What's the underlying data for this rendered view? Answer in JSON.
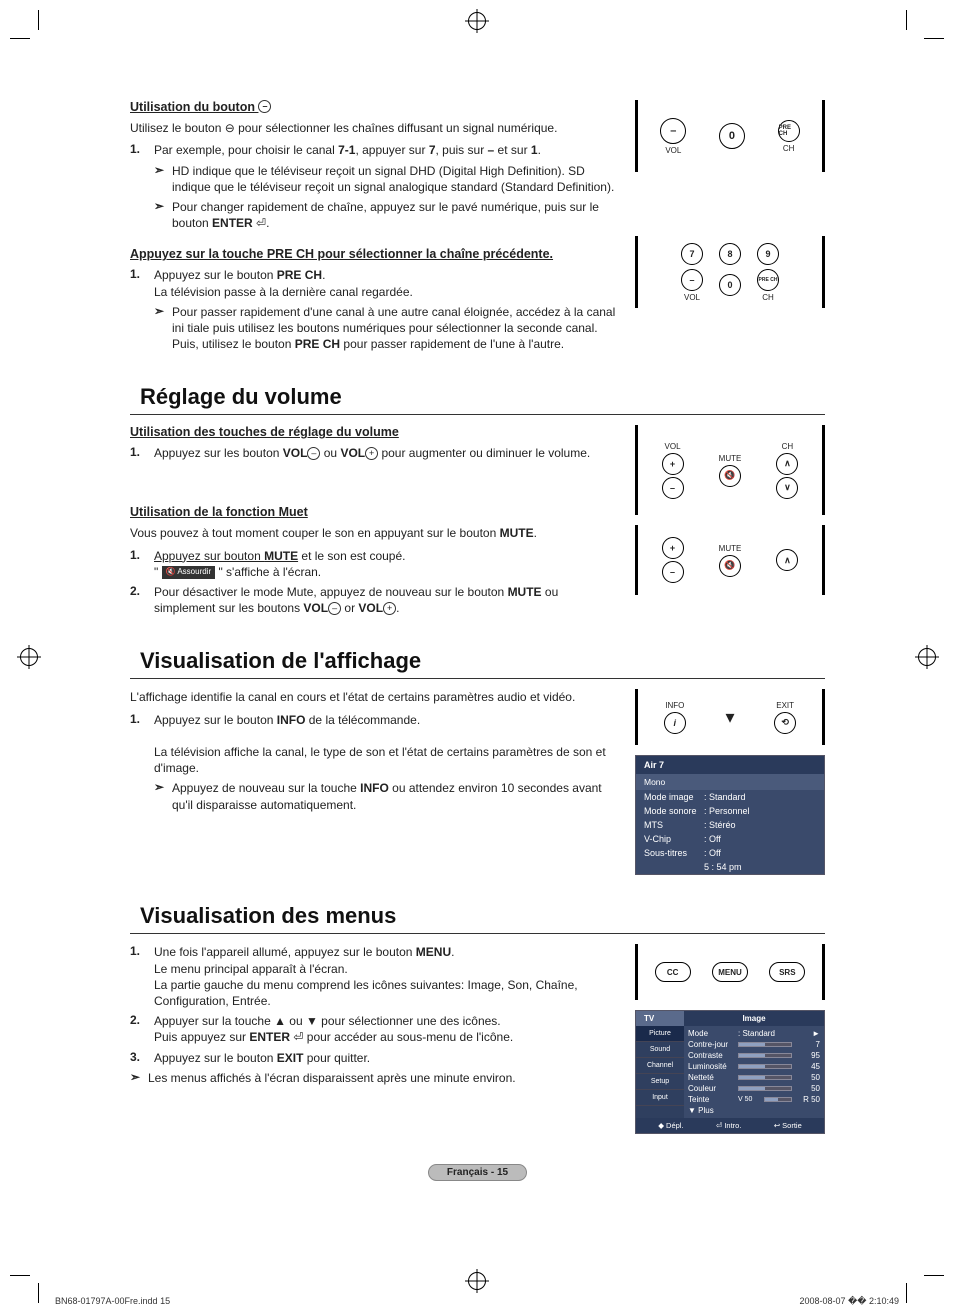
{
  "crop_marks": true,
  "section1": {
    "title": "Utilisation du bouton",
    "intro": "Utilisez le bouton ⊖ pour sélectionner les chaînes diffusant un signal numérique.",
    "step1": "Par exemple, pour choisir le canal 7-1, appuyer sur 7, puis sur – et sur 1.",
    "sub1": "HD indique que le téléviseur reçoit un signal DHD (Digital High Definition). SD indique que le téléviseur reçoit un signal analogique standard (Standard Definition).",
    "sub2": "Pour changer rapidement de chaîne, appuyez sur le pavé numérique, puis sur le bouton ENTER ⏎."
  },
  "section2": {
    "title": "Appuyez sur la touche PRE CH pour sélectionner la chaîne précédente.",
    "step1a": "Appuyez sur le bouton PRE CH.",
    "step1b": "La télévision passe à la dernière canal regardée.",
    "sub1": "Pour passer rapidement d'une canal à une autre canal éloignée, accédez à la canal ini tiale puis utilisez les boutons numériques pour sélectionner la seconde canal. Puis, utilisez le bouton PRE CH pour passer rapidement de l'une à l'autre."
  },
  "section_volume": {
    "heading": "Réglage du volume",
    "sub1_title": "Utilisation des touches de réglage du volume",
    "sub1_step1": "Appuyez sur les bouton VOL⊖ ou VOL⊕ pour augmenter ou diminuer le volume.",
    "sub2_title": "Utilisation de la fonction Muet",
    "sub2_intro": "Vous pouvez à tout moment couper le son en appuyant sur le bouton MUTE.",
    "sub2_step1_a": "Appuyez sur bouton MUTE et le son est coupé.",
    "sub2_step1_b": "\" 🔇 Assourdir \" s'affiche à l'écran.",
    "sub2_step2": "Pour désactiver le mode Mute, appuyez de nouveau sur le bouton MUTE ou simplement sur les boutons VOL⊖ or VOL⊕."
  },
  "section_display": {
    "heading": "Visualisation de l'affichage",
    "intro": "L'affichage identifie la canal en cours et l'état de certains paramètres audio et vidéo.",
    "step1a": "Appuyez sur le bouton INFO de la télécommande.",
    "step1b": "La télévision affiche la canal, le type de son et l'état de certains paramètres de son et d'image.",
    "sub1": "Appuyez de nouveau sur la touche INFO ou attendez environ 10 secondes avant qu'il disparaisse automatiquement."
  },
  "osd": {
    "channel": "Air 7",
    "mono": "Mono",
    "rows": [
      {
        "k": "Mode image",
        "v": ": Standard"
      },
      {
        "k": "Mode sonore",
        "v": ": Personnel"
      },
      {
        "k": "MTS",
        "v": ": Stéréo"
      },
      {
        "k": "V-Chip",
        "v": ": Off"
      },
      {
        "k": "Sous-titres",
        "v": ": Off"
      }
    ],
    "time": "5 : 54 pm"
  },
  "section_menus": {
    "heading": "Visualisation des menus",
    "step1": "Une fois l'appareil allumé, appuyez sur le bouton MENU. Le menu principal apparaît à l'écran. La partie gauche du menu comprend les icônes suivantes: Image, Son, Chaîne, Configuration, Entrée.",
    "step2": "Appuyer sur la touche ▲ ou ▼ pour sélectionner une des icônes. Puis appuyez sur ENTER ⏎ pour accéder au sous-menu de l'icône.",
    "step3": "Appuyez sur le bouton EXIT pour quitter.",
    "note": "Les menus affichés à l'écran disparaissent après une minute environ."
  },
  "menu_panel": {
    "tv_label": "TV",
    "title": "Image",
    "side": [
      "Picture",
      "Sound",
      "Channel",
      "Setup",
      "Input"
    ],
    "rows": [
      {
        "label": "Mode",
        "value": ": Standard",
        "type": "text",
        "arrow": "►"
      },
      {
        "label": "Contre-jour",
        "value": "7",
        "type": "slider"
      },
      {
        "label": "Contraste",
        "value": "95",
        "type": "slider"
      },
      {
        "label": "Luminosité",
        "value": "45",
        "type": "slider"
      },
      {
        "label": "Netteté",
        "value": "50",
        "type": "slider"
      },
      {
        "label": "Couleur",
        "value": "50",
        "type": "slider"
      },
      {
        "label": "Teinte",
        "left": "V 50",
        "value": "R 50",
        "type": "slider2"
      },
      {
        "label": "▼ Plus",
        "value": "",
        "type": "text"
      }
    ],
    "bottom": [
      "◆ Dépl.",
      "⏎ Intro.",
      "↩ Sortie"
    ]
  },
  "remote_labels": {
    "vol": "VOL",
    "ch": "CH",
    "mute": "MUTE",
    "info": "INFO",
    "exit": "EXIT",
    "cc": "CC",
    "menu": "MENU",
    "srs": "SRS",
    "pre_ch": "PRE CH"
  },
  "footer": {
    "pill": "Français - 15",
    "left": "BN68-01797A-00Fre.indd   15",
    "right": "2008-08-07   �� 2:10:49"
  },
  "colors": {
    "osd_bg": "#3a4a6b",
    "osd_dark": "#2a3a5b",
    "osd_mid": "#4a5a7b"
  }
}
